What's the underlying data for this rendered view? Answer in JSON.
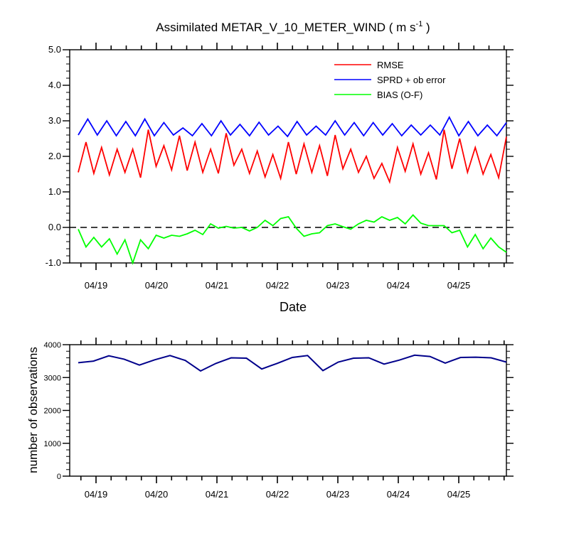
{
  "chart_data": [
    {
      "type": "line",
      "title_main": "Assimilated METAR_V_10_METER_WIND ( m s",
      "title_sup": "-1",
      "title_end": " )",
      "xlabel": "Date",
      "ylabel": "",
      "ylim": [
        -1.0,
        5.0
      ],
      "yticks": [
        "5.0",
        "4.0",
        "3.0",
        "2.0",
        "1.0",
        "0.0",
        "-1.0"
      ],
      "xticks": [
        "04/19",
        "04/20",
        "04/21",
        "04/22",
        "04/23",
        "04/24",
        "04/25"
      ],
      "legend_position": "top-right",
      "zero_line": "dashed",
      "series": [
        {
          "name": "RMSE",
          "color": "#ff0000",
          "values": [
            1.55,
            2.4,
            1.52,
            2.25,
            1.48,
            2.2,
            1.55,
            2.2,
            1.4,
            2.75,
            1.72,
            2.3,
            1.62,
            2.58,
            1.6,
            2.4,
            1.55,
            2.2,
            1.52,
            2.65,
            1.75,
            2.2,
            1.52,
            2.15,
            1.42,
            2.05,
            1.38,
            2.4,
            1.5,
            2.35,
            1.55,
            2.3,
            1.45,
            2.6,
            1.65,
            2.2,
            1.55,
            2.0,
            1.38,
            1.8,
            1.28,
            2.25,
            1.58,
            2.35,
            1.5,
            2.1,
            1.35,
            2.75,
            1.65,
            2.5,
            1.55,
            2.25,
            1.5,
            2.05,
            1.4,
            2.55
          ]
        },
        {
          "name": "SPRD + ob error",
          "color": "#0000ff",
          "values": [
            2.6,
            3.05,
            2.6,
            3.0,
            2.58,
            2.98,
            2.58,
            3.05,
            2.58,
            2.95,
            2.6,
            2.8,
            2.58,
            2.92,
            2.58,
            3.0,
            2.6,
            2.9,
            2.58,
            2.96,
            2.6,
            2.85,
            2.56,
            2.98,
            2.6,
            2.85,
            2.6,
            3.0,
            2.6,
            2.95,
            2.58,
            2.95,
            2.6,
            2.92,
            2.58,
            2.88,
            2.6,
            2.88,
            2.6,
            3.1,
            2.58,
            2.98,
            2.58,
            2.88,
            2.58,
            2.95
          ]
        },
        {
          "name": "BIAS (O-F)",
          "color": "#00ff00",
          "values": [
            -0.05,
            -0.55,
            -0.28,
            -0.55,
            -0.32,
            -0.75,
            -0.35,
            -1.0,
            -0.35,
            -0.6,
            -0.22,
            -0.3,
            -0.22,
            -0.25,
            -0.18,
            -0.08,
            -0.2,
            0.1,
            -0.02,
            0.03,
            -0.02,
            0.0,
            -0.1,
            0.0,
            0.2,
            0.05,
            0.25,
            0.3,
            -0.02,
            -0.25,
            -0.18,
            -0.15,
            0.05,
            0.1,
            0.02,
            -0.05,
            0.1,
            0.2,
            0.15,
            0.3,
            0.2,
            0.28,
            0.1,
            0.35,
            0.12,
            0.05,
            0.05,
            0.05,
            -0.15,
            -0.08,
            -0.55,
            -0.2,
            -0.6,
            -0.3,
            -0.55,
            -0.7
          ]
        }
      ]
    },
    {
      "type": "line",
      "xlabel": "",
      "ylabel": "number of observations",
      "ylim": [
        0,
        4000
      ],
      "yticks": [
        "4000",
        "3000",
        "2000",
        "1000",
        "0"
      ],
      "xticks": [
        "04/19",
        "04/20",
        "04/21",
        "04/22",
        "04/23",
        "04/24",
        "04/25"
      ],
      "series": [
        {
          "name": "",
          "color": "#00008b",
          "values": [
            3450,
            3500,
            3660,
            3560,
            3380,
            3540,
            3670,
            3520,
            3200,
            3430,
            3600,
            3590,
            3260,
            3430,
            3610,
            3670,
            3210,
            3470,
            3590,
            3600,
            3410,
            3530,
            3680,
            3640,
            3440,
            3610,
            3620,
            3600,
            3470
          ]
        }
      ]
    }
  ]
}
